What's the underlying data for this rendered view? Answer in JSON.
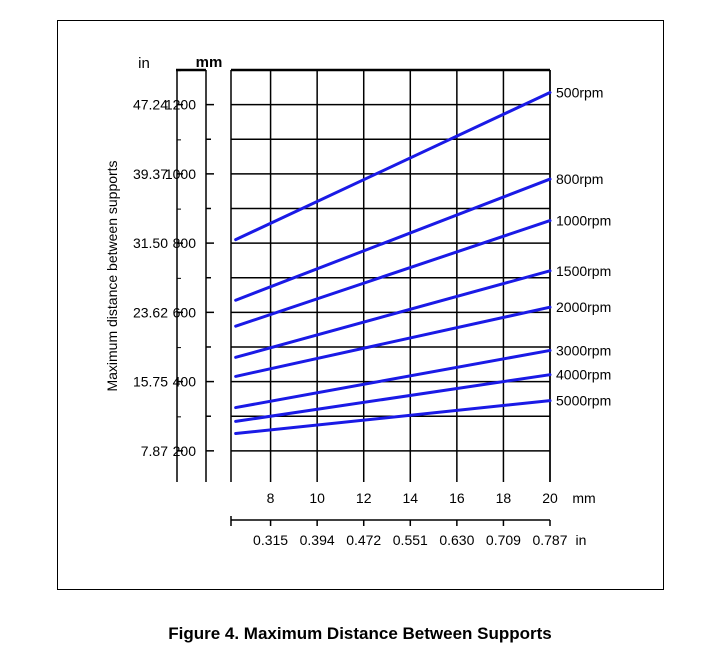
{
  "caption": "Figure 4.  Maximum Distance Between Supports",
  "chart_data": {
    "type": "line",
    "title": "",
    "ylabel": "Maximum distance between supports",
    "y_units": {
      "in": "in",
      "mm": "mm"
    },
    "x_units": {
      "mm": "mm",
      "in": "in"
    },
    "xlim": [
      6.3,
      20
    ],
    "ylim": [
      110,
      1300
    ],
    "x_ticks_mm": [
      8,
      10,
      12,
      14,
      16,
      18,
      20
    ],
    "x_ticks_in": [
      "0.315",
      "0.394",
      "0.472",
      "0.551",
      "0.630",
      "0.709",
      "0.787"
    ],
    "y_ticks": [
      {
        "mm": 1200,
        "in": "47.24"
      },
      {
        "mm": 1000,
        "in": "39.37"
      },
      {
        "mm": 800,
        "in": "31.50"
      },
      {
        "mm": 600,
        "in": "23.62"
      },
      {
        "mm": 400,
        "in": "15.75"
      },
      {
        "mm": 200,
        "in": "7.87"
      }
    ],
    "grid": true,
    "line_color": "#1a1ae6",
    "series": [
      {
        "name": "500rpm",
        "x": [
          6.5,
          20
        ],
        "y": [
          810,
          1235
        ]
      },
      {
        "name": "800rpm",
        "x": [
          6.5,
          20
        ],
        "y": [
          635,
          985
        ]
      },
      {
        "name": "1000rpm",
        "x": [
          6.5,
          20
        ],
        "y": [
          560,
          865
        ]
      },
      {
        "name": "1500rpm",
        "x": [
          6.5,
          20
        ],
        "y": [
          470,
          720
        ]
      },
      {
        "name": "2000rpm",
        "x": [
          6.5,
          20
        ],
        "y": [
          415,
          615
        ]
      },
      {
        "name": "3000rpm",
        "x": [
          6.5,
          20
        ],
        "y": [
          325,
          490
        ]
      },
      {
        "name": "4000rpm",
        "x": [
          6.5,
          20
        ],
        "y": [
          285,
          420
        ]
      },
      {
        "name": "5000rpm",
        "x": [
          6.5,
          20
        ],
        "y": [
          250,
          345
        ]
      }
    ]
  }
}
